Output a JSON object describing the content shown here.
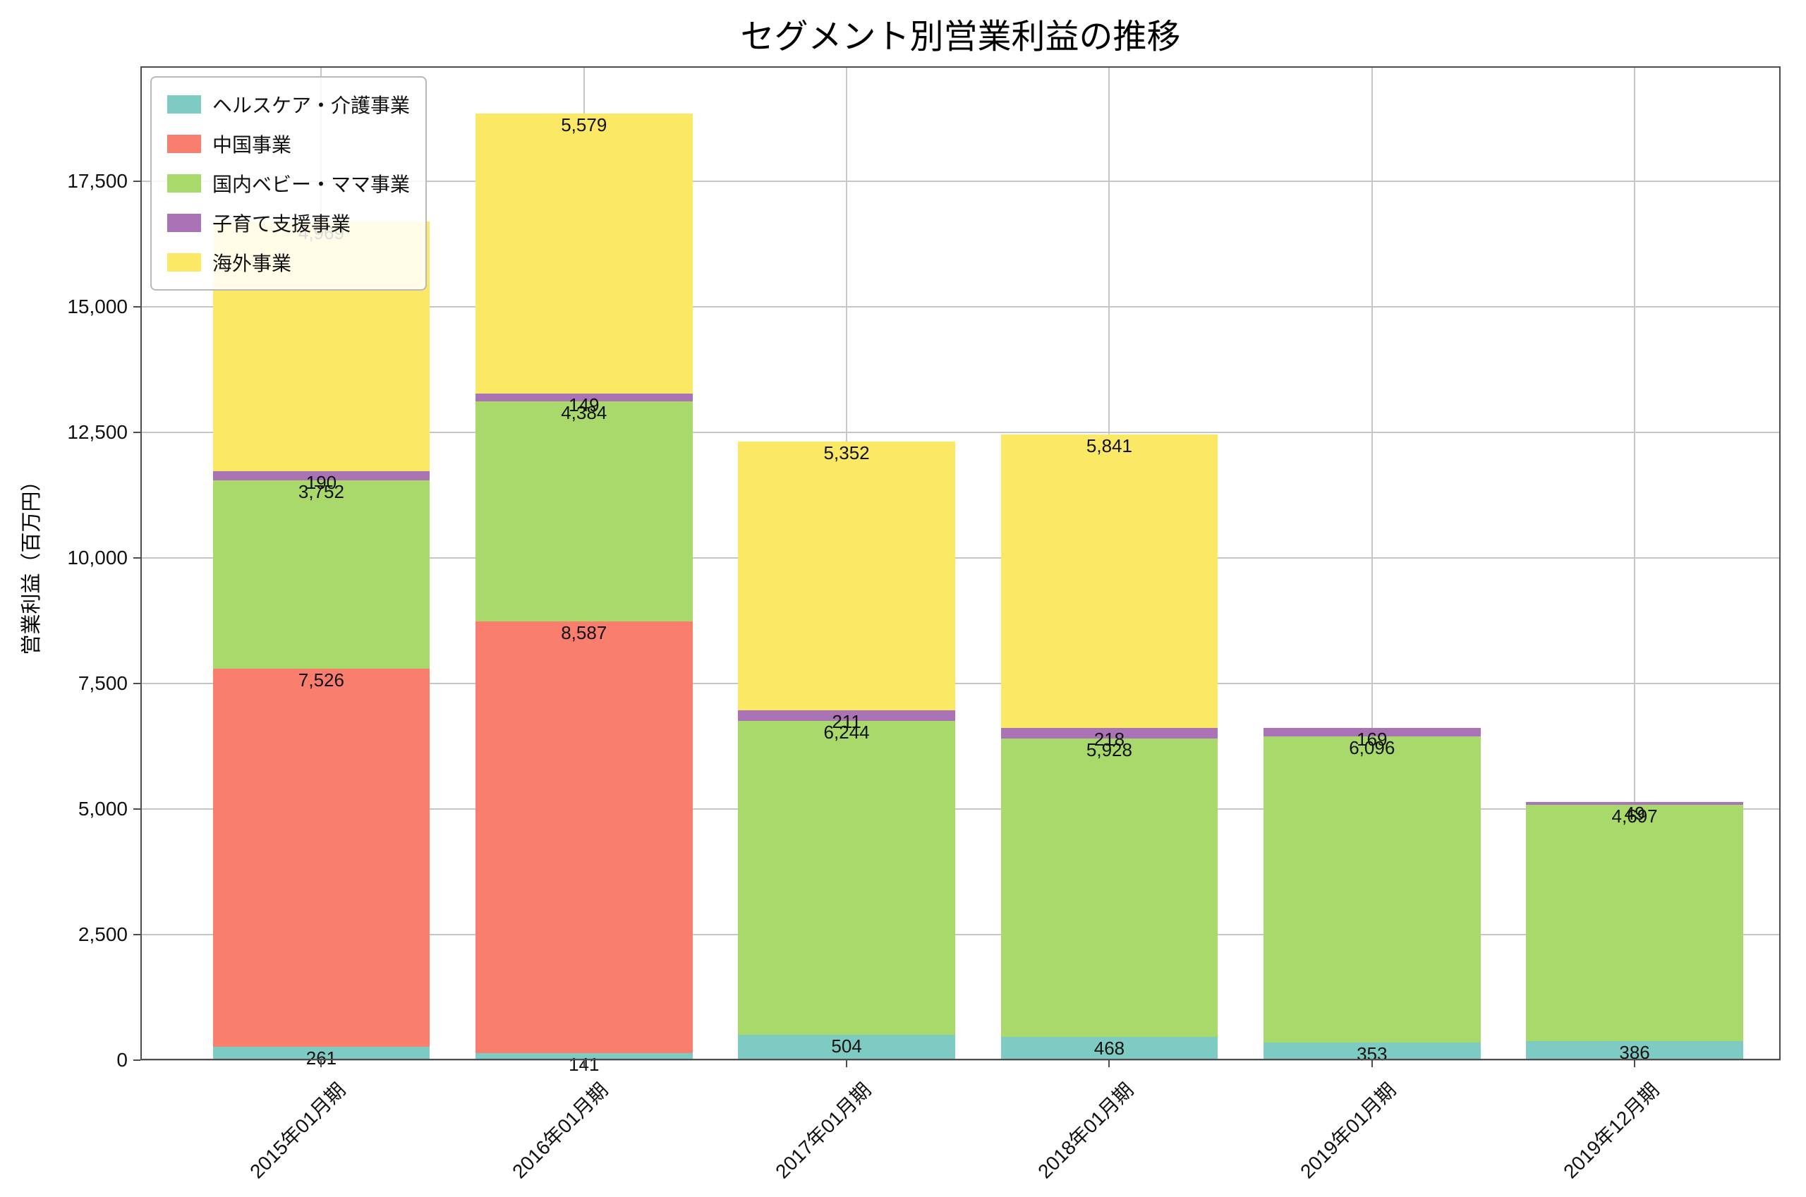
{
  "chart_data": {
    "type": "bar",
    "stacked": true,
    "title": "セグメント別営業利益の推移",
    "xlabel": "",
    "ylabel": "営業利益（百万円）",
    "categories": [
      "2015年01月期",
      "2016年01月期",
      "2017年01月期",
      "2018年01月期",
      "2019年01月期",
      "2019年12月期"
    ],
    "series": [
      {
        "name": "ヘルスケア・介護事業",
        "color": "#7dcbc3",
        "values": [
          261,
          141,
          504,
          468,
          353,
          386
        ]
      },
      {
        "name": "中国事業",
        "color": "#f97e6e",
        "values": [
          7526,
          8587,
          0,
          0,
          0,
          0
        ]
      },
      {
        "name": "国内ベビー・ママ事業",
        "color": "#a9d96b",
        "values": [
          3752,
          4384,
          6244,
          5928,
          6096,
          4697
        ]
      },
      {
        "name": "子育て支援事業",
        "color": "#a973b5",
        "values": [
          190,
          149,
          211,
          218,
          169,
          49
        ]
      },
      {
        "name": "海外事業",
        "color": "#fbe965",
        "values": [
          4969,
          5579,
          5352,
          5841,
          0,
          0
        ]
      }
    ],
    "ylim": [
      0,
      19782
    ],
    "yticks": [
      0,
      2500,
      5000,
      7500,
      10000,
      12500,
      15000,
      17500
    ],
    "grid": true,
    "legend_position": "upper left"
  },
  "colors": {
    "grid": "#c6c6c6",
    "spine": "#4d4d4d",
    "label_text": "#111111"
  }
}
